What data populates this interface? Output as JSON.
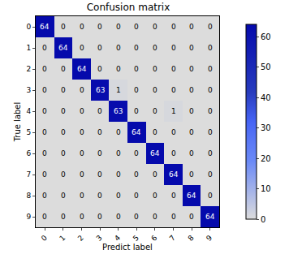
{
  "chart_data": {
    "type": "heatmap",
    "title": "Confusion matrix",
    "x_label": "Predict label",
    "y_label": "True label",
    "x": [
      "0",
      "1",
      "2",
      "3",
      "4",
      "5",
      "6",
      "7",
      "8",
      "9"
    ],
    "y": [
      "0",
      "1",
      "2",
      "3",
      "4",
      "5",
      "6",
      "7",
      "8",
      "9"
    ],
    "cells": [
      [
        64,
        0,
        0,
        0,
        0,
        0,
        0,
        0,
        0,
        0
      ],
      [
        0,
        64,
        0,
        0,
        0,
        0,
        0,
        0,
        0,
        0
      ],
      [
        0,
        0,
        64,
        0,
        0,
        0,
        0,
        0,
        0,
        0
      ],
      [
        0,
        0,
        0,
        63,
        1,
        0,
        0,
        0,
        0,
        0
      ],
      [
        0,
        0,
        0,
        0,
        63,
        0,
        0,
        1,
        0,
        0
      ],
      [
        0,
        0,
        0,
        0,
        0,
        64,
        0,
        0,
        0,
        0
      ],
      [
        0,
        0,
        0,
        0,
        0,
        0,
        64,
        0,
        0,
        0
      ],
      [
        0,
        0,
        0,
        0,
        0,
        0,
        0,
        64,
        0,
        0
      ],
      [
        0,
        0,
        0,
        0,
        0,
        0,
        0,
        0,
        64,
        0
      ],
      [
        0,
        0,
        0,
        0,
        0,
        0,
        0,
        0,
        0,
        64
      ]
    ],
    "colorbar_range": [
      0,
      64
    ],
    "colorbar_ticks": [
      0,
      10,
      20,
      30,
      40,
      50,
      60
    ],
    "color": "Blues",
    "data_labels": true
  }
}
